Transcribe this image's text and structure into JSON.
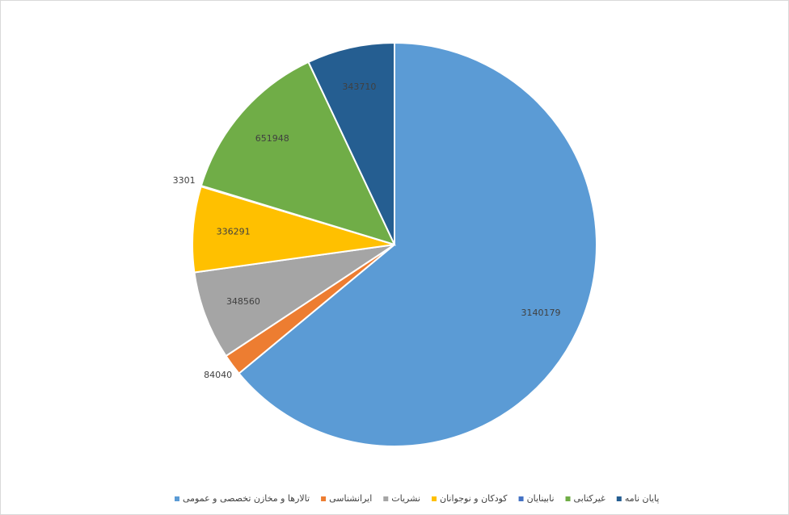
{
  "chart_data": {
    "type": "pie",
    "categories": [
      "تالارها و مخازن تخصصی و عمومی",
      "ایرانشناسی",
      "نشریات",
      "کودکان و نوجوانان",
      "نابینایان",
      "غیرکتابی",
      "پایان نامه"
    ],
    "values": [
      3140179,
      84040,
      348560,
      336291,
      3301,
      651948,
      343710
    ],
    "colors": [
      "#5b9bd5",
      "#ed7d31",
      "#a5a5a5",
      "#ffc000",
      "#4472c4",
      "#70ad47",
      "#255e91"
    ],
    "legend": "bottom"
  }
}
